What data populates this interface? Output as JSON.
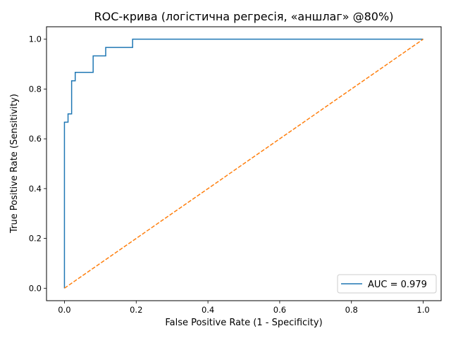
{
  "chart_data": {
    "type": "line",
    "title": "ROC-крива (логістична регресія, «аншлаг» @80%)",
    "xlabel": "False Positive Rate (1 - Specificity)",
    "ylabel": "True Positive Rate (Sensitivity)",
    "xlim": [
      -0.05,
      1.05
    ],
    "ylim": [
      -0.05,
      1.05
    ],
    "x_ticks": [
      0.0,
      0.2,
      0.4,
      0.6,
      0.8,
      1.0
    ],
    "y_ticks": [
      0.0,
      0.2,
      0.4,
      0.6,
      0.8,
      1.0
    ],
    "x_tick_labels": [
      "0.0",
      "0.2",
      "0.4",
      "0.6",
      "0.8",
      "1.0"
    ],
    "y_tick_labels": [
      "0.0",
      "0.2",
      "0.4",
      "0.6",
      "0.8",
      "1.0"
    ],
    "grid": false,
    "legend_position": "lower-right",
    "series": [
      {
        "name": "AUC = 0.979",
        "color": "#1f77b4",
        "style": "solid",
        "x": [
          0.0,
          0.0,
          0.0,
          0.01,
          0.01,
          0.02,
          0.02,
          0.03,
          0.03,
          0.04,
          0.04,
          0.08,
          0.08,
          0.115,
          0.115,
          0.19,
          0.19,
          1.0
        ],
        "y": [
          0.0,
          0.1,
          0.667,
          0.667,
          0.7,
          0.7,
          0.833,
          0.833,
          0.867,
          0.867,
          0.867,
          0.867,
          0.933,
          0.933,
          0.967,
          0.967,
          1.0,
          1.0
        ]
      },
      {
        "name": "",
        "color": "#ff7f0e",
        "style": "dashed",
        "x": [
          0.0,
          1.0
        ],
        "y": [
          0.0,
          1.0
        ]
      }
    ]
  }
}
